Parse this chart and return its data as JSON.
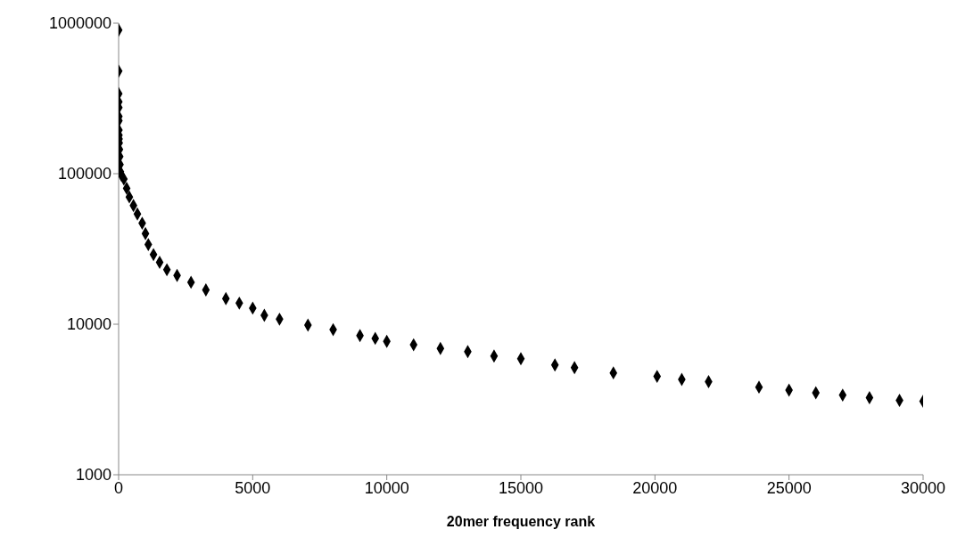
{
  "chart_data": {
    "type": "scatter",
    "xlabel": "20mer frequency rank",
    "marker": "diamond",
    "log": "y",
    "grid": false,
    "legend": false,
    "xlim": [
      0,
      30000
    ],
    "xticks": [
      0,
      5000,
      10000,
      15000,
      20000,
      25000,
      30000
    ],
    "ylim": [
      1000,
      1000000
    ],
    "yticks": [
      1000,
      10000,
      100000,
      1000000
    ],
    "series": [
      {
        "color": "#000000",
        "x": [
          1,
          2,
          3,
          6,
          7,
          8,
          9,
          10,
          12,
          15,
          20,
          30,
          40,
          50,
          65,
          100,
          195,
          300,
          400,
          553,
          700,
          879,
          1000,
          1107,
          1300,
          1530,
          1800,
          2180,
          2700,
          3254,
          4000,
          4500,
          5000,
          5434,
          6000,
          7060,
          8000,
          9000,
          9570,
          10000,
          11000,
          12000,
          13020,
          14000,
          15000,
          16270,
          17000,
          18450,
          20080,
          21000,
          22000,
          23880,
          25000,
          26000,
          27000,
          28000,
          29120,
          30000
        ],
        "values": [
          900000,
          480000,
          340000,
          300000,
          275000,
          240000,
          225000,
          195000,
          180000,
          170000,
          160000,
          145000,
          130000,
          115000,
          103000,
          98000,
          92000,
          80000,
          70000,
          61400,
          54000,
          46900,
          40000,
          33800,
          29000,
          25800,
          23000,
          21100,
          19000,
          16900,
          14800,
          13800,
          12800,
          11460,
          10800,
          9860,
          9200,
          8400,
          8050,
          7700,
          7300,
          6900,
          6580,
          6150,
          5900,
          5360,
          5150,
          4750,
          4500,
          4300,
          4150,
          3820,
          3650,
          3500,
          3380,
          3250,
          3120,
          3080
        ]
      }
    ]
  }
}
